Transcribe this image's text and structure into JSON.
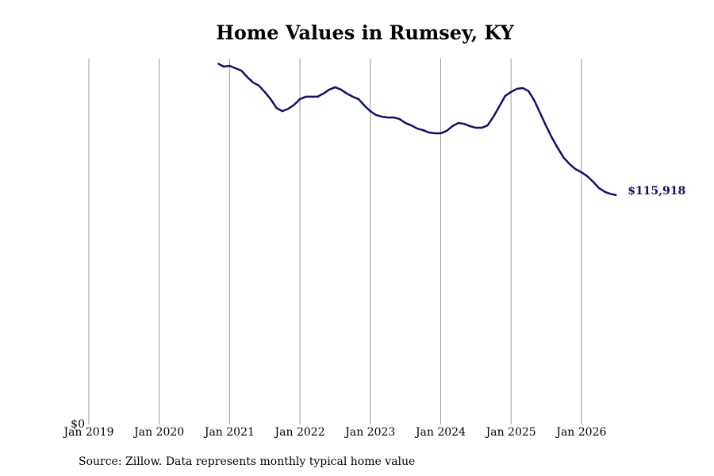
{
  "chart_data": {
    "type": "line",
    "title": "Home Values in Rumsey, KY",
    "source": "Source: Zillow. Data represents monthly typical home value",
    "color": "#10106a",
    "grid": true,
    "x": [
      "2020-11",
      "2020-12",
      "2021-01",
      "2021-02",
      "2021-03",
      "2021-04",
      "2021-05",
      "2021-06",
      "2021-07",
      "2021-08",
      "2021-09",
      "2021-10",
      "2021-11",
      "2021-12",
      "2022-01",
      "2022-02",
      "2022-03",
      "2022-04",
      "2022-05",
      "2022-06",
      "2022-07",
      "2022-08",
      "2022-09",
      "2022-10",
      "2022-11",
      "2022-12",
      "2023-01",
      "2023-02",
      "2023-03",
      "2023-04",
      "2023-05",
      "2023-06",
      "2023-07",
      "2023-08",
      "2023-09",
      "2023-10",
      "2023-11",
      "2023-12",
      "2024-01",
      "2024-02",
      "2024-03",
      "2024-04",
      "2024-05",
      "2024-06",
      "2024-07",
      "2024-08",
      "2024-09",
      "2024-10",
      "2024-11",
      "2024-12",
      "2025-01",
      "2025-02",
      "2025-03",
      "2025-04",
      "2025-05",
      "2025-06",
      "2025-07",
      "2025-08",
      "2025-09",
      "2025-10",
      "2025-11",
      "2025-12",
      "2026-01",
      "2026-02",
      "2026-03",
      "2026-04",
      "2026-05",
      "2026-06",
      "2026-07"
    ],
    "values": [
      182500,
      180900,
      181300,
      180100,
      178900,
      175700,
      172900,
      171300,
      168100,
      164500,
      160000,
      158400,
      159600,
      161600,
      164500,
      165700,
      165700,
      165700,
      167300,
      169300,
      170500,
      169300,
      167300,
      165700,
      164500,
      161200,
      158400,
      156400,
      155600,
      155200,
      155200,
      154400,
      152400,
      151200,
      149600,
      148800,
      147600,
      147200,
      147200,
      148400,
      150800,
      152400,
      152000,
      150800,
      150000,
      150000,
      151200,
      155600,
      160800,
      166100,
      168100,
      169700,
      170100,
      168500,
      163600,
      157200,
      150800,
      144800,
      139600,
      134800,
      131600,
      129100,
      127500,
      125500,
      122700,
      119500,
      117600,
      116500,
      115918
    ],
    "value_labels": [
      null,
      null,
      null,
      null,
      null,
      null,
      null,
      null,
      null,
      null,
      null,
      null,
      null,
      null,
      null,
      null,
      null,
      null,
      null,
      null,
      null,
      null,
      null,
      null,
      null,
      null,
      null,
      null,
      null,
      null,
      null,
      null,
      null,
      null,
      null,
      null,
      null,
      null,
      null,
      null,
      null,
      null,
      null,
      null,
      null,
      null,
      null,
      null,
      null,
      null,
      null,
      null,
      null,
      null,
      null,
      null,
      null,
      null,
      null,
      null,
      null,
      null,
      null,
      null,
      null,
      null,
      null,
      null,
      "$115,918"
    ],
    "xlim": [
      "2019-01",
      "2026-08"
    ],
    "xticks": [
      {
        "value": "2019-01",
        "label": "Jan 2019"
      },
      {
        "value": "2020-01",
        "label": "Jan 2020"
      },
      {
        "value": "2021-01",
        "label": "Jan 2021"
      },
      {
        "value": "2022-01",
        "label": "Jan 2022"
      },
      {
        "value": "2023-01",
        "label": "Jan 2023"
      },
      {
        "value": "2024-01",
        "label": "Jan 2024"
      },
      {
        "value": "2025-01",
        "label": "Jan 2025"
      },
      {
        "value": "2026-01",
        "label": "Jan 2026"
      }
    ],
    "ylim": [
      0,
      185000
    ],
    "yticks": [
      {
        "value": 0,
        "label": "$0"
      }
    ]
  }
}
